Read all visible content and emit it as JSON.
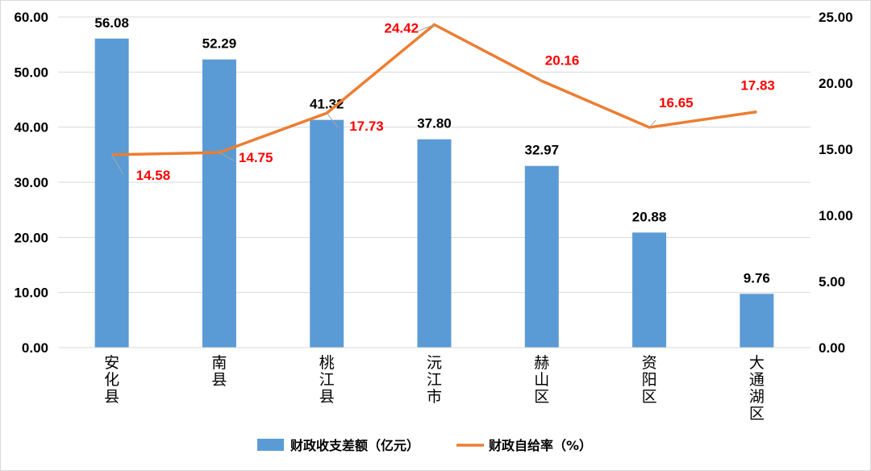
{
  "chart_data": {
    "type": "bar",
    "categories": [
      "安化县",
      "南县",
      "桃江县",
      "沅江市",
      "赫山区",
      "资阳区",
      "大通湖区"
    ],
    "category_labels": [
      "56.08",
      "52.29",
      "41.32",
      "37.80",
      "32.97",
      "20.88",
      "9.76"
    ],
    "series": [
      {
        "name": "财政收支差额（亿元）",
        "type": "bar",
        "axis": "left",
        "values": [
          56.08,
          52.29,
          41.32,
          37.8,
          32.97,
          20.88,
          9.76
        ],
        "labels": [
          "56.08",
          "52.29",
          "41.32",
          "37.80",
          "32.97",
          "20.88",
          "9.76"
        ],
        "color": "#5b9bd5"
      },
      {
        "name": "财政自给率（%）",
        "type": "line",
        "axis": "right",
        "values": [
          14.58,
          14.75,
          17.73,
          24.42,
          20.16,
          16.65,
          17.83
        ],
        "labels": [
          "14.58",
          "14.75",
          "17.73",
          "24.42",
          "20.16",
          "16.65",
          "17.83"
        ],
        "color": "#ed7d31",
        "label_color": "#ff0000"
      }
    ],
    "y_left": {
      "ylim": [
        0,
        60
      ],
      "ticks": [
        "0.00",
        "10.00",
        "20.00",
        "30.00",
        "40.00",
        "50.00",
        "60.00"
      ]
    },
    "y_right": {
      "ylim": [
        0,
        25
      ],
      "ticks": [
        "0.00",
        "5.00",
        "10.00",
        "15.00",
        "20.00",
        "25.00"
      ]
    },
    "grid": true,
    "legend": "bottom"
  }
}
